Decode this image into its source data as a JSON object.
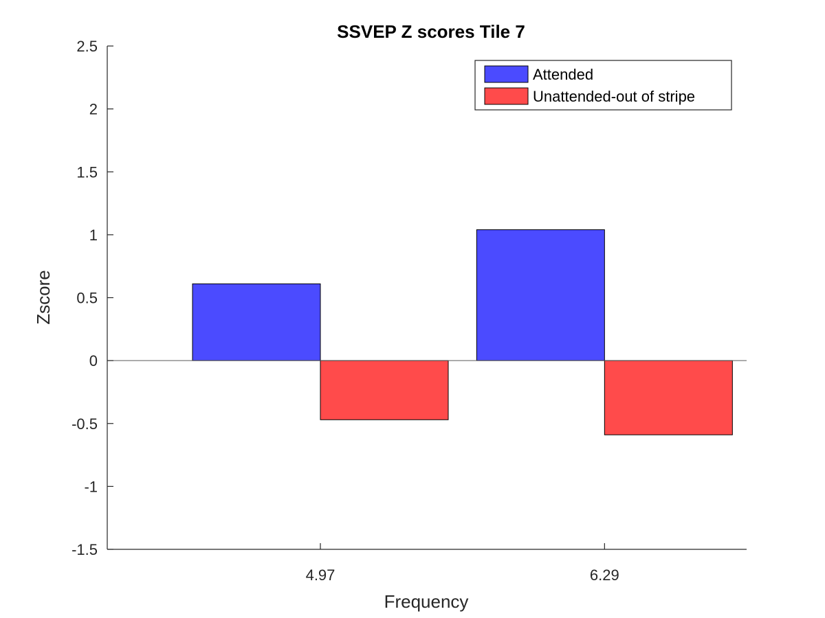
{
  "chart_data": {
    "type": "bar",
    "title": "SSVEP Z scores Tile 7",
    "xlabel": "Frequency",
    "ylabel": "Zscore",
    "categories": [
      "4.97",
      "6.29"
    ],
    "series": [
      {
        "name": "Attended",
        "values": [
          0.61,
          1.04
        ],
        "color": "#4b4bff"
      },
      {
        "name": "Unattended-out of stripe",
        "values": [
          -0.47,
          -0.59
        ],
        "color": "#ff4b4b"
      }
    ],
    "ylim": [
      -1.5,
      2.5
    ],
    "yticks": [
      -1.5,
      -1,
      -0.5,
      0,
      0.5,
      1,
      1.5,
      2,
      2.5
    ],
    "ytick_labels": [
      "-1.5",
      "-1",
      "-0.5",
      "0",
      "0.5",
      "1",
      "1.5",
      "2",
      "2.5"
    ],
    "grid": false,
    "legend_position": "top-right",
    "colors": {
      "axis": "#262626",
      "baseline": "#595959",
      "bar_edge": "#000000"
    }
  }
}
